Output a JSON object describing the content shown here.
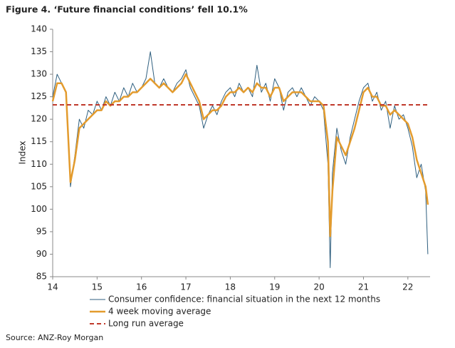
{
  "chart_data": {
    "type": "line",
    "title": "Figure 4.  ‘Future financial conditions’ fell 10.1%",
    "ylabel": "Index",
    "source": "Source: ANZ-Roy Morgan",
    "x": [
      14.0,
      14.1,
      14.2,
      14.3,
      14.35,
      14.4,
      14.5,
      14.6,
      14.7,
      14.8,
      14.9,
      15.0,
      15.1,
      15.2,
      15.3,
      15.4,
      15.5,
      15.6,
      15.7,
      15.8,
      15.9,
      16.0,
      16.1,
      16.2,
      16.3,
      16.4,
      16.5,
      16.6,
      16.7,
      16.8,
      16.9,
      17.0,
      17.1,
      17.2,
      17.3,
      17.4,
      17.5,
      17.6,
      17.7,
      17.8,
      17.9,
      18.0,
      18.1,
      18.2,
      18.3,
      18.4,
      18.5,
      18.6,
      18.7,
      18.8,
      18.9,
      19.0,
      19.1,
      19.2,
      19.3,
      19.4,
      19.5,
      19.6,
      19.7,
      19.8,
      19.9,
      20.0,
      20.1,
      20.2,
      20.25,
      20.3,
      20.4,
      20.5,
      20.6,
      20.7,
      20.8,
      20.9,
      21.0,
      21.1,
      21.2,
      21.3,
      21.4,
      21.5,
      21.6,
      21.7,
      21.8,
      21.9,
      22.0,
      22.1,
      22.2,
      22.3,
      22.4,
      22.45
    ],
    "series": [
      {
        "name": "Consumer confidence: financial situation in the next 12 months",
        "color": "#2f5f7f",
        "width": 1,
        "values": [
          125,
          130,
          128,
          126,
          115,
          105,
          112,
          120,
          118,
          122,
          121,
          124,
          122,
          125,
          123,
          126,
          124,
          127,
          125,
          128,
          126,
          127,
          129,
          135,
          128,
          127,
          129,
          127,
          126,
          128,
          129,
          131,
          127,
          125,
          123,
          118,
          121,
          123,
          121,
          124,
          126,
          127,
          125,
          128,
          126,
          127,
          125,
          132,
          126,
          128,
          124,
          129,
          127,
          122,
          126,
          127,
          125,
          127,
          125,
          123,
          125,
          124,
          122,
          110,
          87,
          108,
          118,
          113,
          110,
          116,
          120,
          124,
          127,
          128,
          124,
          126,
          122,
          124,
          118,
          123,
          120,
          121,
          118,
          114,
          107,
          110,
          104,
          90
        ]
      },
      {
        "name": "4 week moving average",
        "color": "#e39b2d",
        "width": 2.5,
        "values": [
          124,
          128,
          128,
          126,
          116,
          106,
          111,
          118,
          119,
          120,
          121,
          122,
          122,
          124,
          123,
          124,
          124,
          125,
          125,
          126,
          126,
          127,
          128,
          129,
          128,
          127,
          128,
          127,
          126,
          127,
          128,
          130,
          128,
          126,
          124,
          120,
          121,
          122,
          122,
          123,
          125,
          126,
          126,
          127,
          126,
          127,
          126,
          128,
          127,
          127,
          125,
          127,
          127,
          124,
          125,
          126,
          126,
          126,
          125,
          124,
          124,
          124,
          123,
          115,
          94,
          104,
          116,
          114,
          112,
          115,
          118,
          122,
          126,
          127,
          125,
          125,
          123,
          123,
          121,
          122,
          121,
          120,
          119,
          116,
          111,
          108,
          105,
          101
        ]
      }
    ],
    "reference_line": {
      "name": "Long run average",
      "value": 123.2,
      "color": "#c0392b"
    },
    "xlim": [
      14,
      22.5
    ],
    "xticks": [
      14,
      15,
      16,
      17,
      18,
      19,
      20,
      21,
      22
    ],
    "ylim": [
      85,
      140
    ],
    "yticks": [
      85,
      90,
      95,
      100,
      105,
      110,
      115,
      120,
      125,
      130,
      135,
      140
    ]
  }
}
